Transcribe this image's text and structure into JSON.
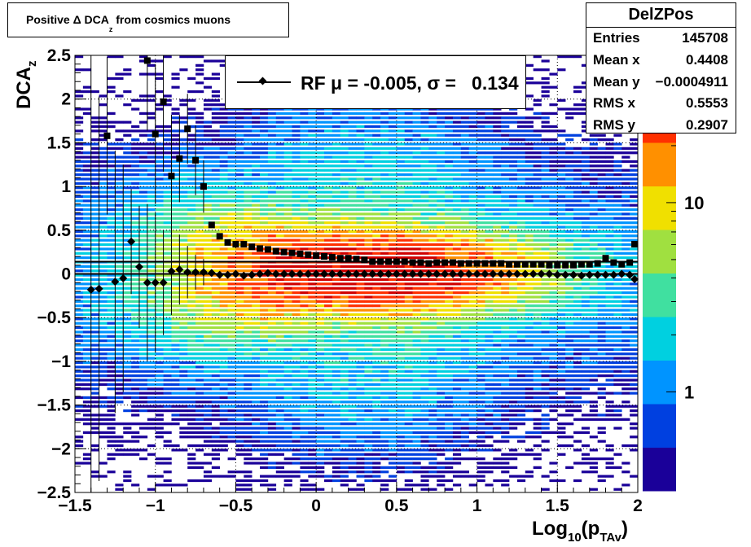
{
  "title": {
    "pre": "Positive Δ DCA",
    "sub": "z",
    "post": " from cosmics muons"
  },
  "stats": {
    "name": "DelZPos",
    "rows": [
      {
        "key": "Entries",
        "value": "145708"
      },
      {
        "key": "Mean x",
        "value": "0.4408"
      },
      {
        "key": "Mean y",
        "value": "−0.0004911"
      },
      {
        "key": "RMS x",
        "value": "0.5553"
      },
      {
        "key": "RMS y",
        "value": "0.2907"
      }
    ]
  },
  "legend": {
    "label": "RF μ = -0.005, σ =   0.134"
  },
  "axes": {
    "ylabel_main": "DCA",
    "ylabel_sub": "z",
    "xlabel_main": "Log",
    "xlabel_sub1": "10",
    "xlabel_mid": "(p",
    "xlabel_sub2": "TAv",
    "xlabel_end": ")"
  },
  "chart_data": {
    "type": "heatmap",
    "xlim": [
      -1.5,
      2
    ],
    "ylim": [
      -2.5,
      2.5
    ],
    "x_ticks": [
      -1.5,
      -1,
      -0.5,
      0,
      0.5,
      1,
      1.5,
      2
    ],
    "x_tick_labels": [
      "−1.5",
      "−1",
      "−0.5",
      "0",
      "0.5",
      "1",
      "1.5",
      "2"
    ],
    "y_ticks": [
      -2.5,
      -2,
      -1.5,
      -1,
      -0.5,
      0,
      0.5,
      1,
      1.5,
      2,
      2.5
    ],
    "y_tick_labels": [
      "−2.5",
      "−2",
      "−1.5",
      "−1",
      "−0.5",
      "0",
      "0.5",
      "1",
      "1.5",
      "2",
      "2.5"
    ],
    "grid": true,
    "log_z": true,
    "z_tick_labels": [
      "1",
      "10"
    ],
    "z_ticks": [
      1,
      10
    ],
    "z_range": [
      0.3,
      60
    ],
    "palette": [
      "#1a0099",
      "#0040e0",
      "#0094ff",
      "#00d0e0",
      "#40e0a0",
      "#a0e040",
      "#f0e000",
      "#ff9000",
      "#ff3000",
      "#d00000"
    ],
    "hlines": [
      0.14,
      0
    ],
    "markers_filled": [
      [
        -1.3,
        1.58
      ],
      [
        -1.05,
        2.44
      ],
      [
        -1.0,
        1.6
      ],
      [
        -0.95,
        1.97
      ],
      [
        -0.9,
        1.12
      ],
      [
        -0.85,
        1.32
      ],
      [
        -0.8,
        1.66
      ],
      [
        -0.75,
        1.3
      ],
      [
        -0.7,
        1.0
      ],
      [
        -0.65,
        0.56
      ],
      [
        -0.6,
        0.43
      ],
      [
        -0.55,
        0.36
      ],
      [
        -0.5,
        0.34
      ],
      [
        -0.45,
        0.34
      ],
      [
        -0.4,
        0.31
      ],
      [
        -0.35,
        0.29
      ],
      [
        -0.3,
        0.28
      ],
      [
        -0.25,
        0.26
      ],
      [
        -0.2,
        0.25
      ],
      [
        -0.15,
        0.24
      ],
      [
        -0.1,
        0.23
      ],
      [
        -0.05,
        0.22
      ],
      [
        0.0,
        0.21
      ],
      [
        0.05,
        0.2
      ],
      [
        0.1,
        0.19
      ],
      [
        0.15,
        0.18
      ],
      [
        0.2,
        0.18
      ],
      [
        0.25,
        0.17
      ],
      [
        0.3,
        0.16
      ],
      [
        0.35,
        0.14
      ],
      [
        0.4,
        0.14
      ],
      [
        0.45,
        0.14
      ],
      [
        0.5,
        0.14
      ],
      [
        0.55,
        0.14
      ],
      [
        0.6,
        0.13
      ],
      [
        0.65,
        0.13
      ],
      [
        0.7,
        0.12
      ],
      [
        0.75,
        0.13
      ],
      [
        0.8,
        0.13
      ],
      [
        0.85,
        0.13
      ],
      [
        0.9,
        0.12
      ],
      [
        0.95,
        0.12
      ],
      [
        1.0,
        0.12
      ],
      [
        1.05,
        0.12
      ],
      [
        1.1,
        0.12
      ],
      [
        1.15,
        0.12
      ],
      [
        1.2,
        0.11
      ],
      [
        1.25,
        0.11
      ],
      [
        1.3,
        0.11
      ],
      [
        1.35,
        0.11
      ],
      [
        1.4,
        0.11
      ],
      [
        1.45,
        0.1
      ],
      [
        1.5,
        0.1
      ],
      [
        1.55,
        0.1
      ],
      [
        1.6,
        0.1
      ],
      [
        1.65,
        0.11
      ],
      [
        1.7,
        0.11
      ],
      [
        1.75,
        0.12
      ],
      [
        1.8,
        0.18
      ],
      [
        1.85,
        0.13
      ],
      [
        1.9,
        0.11
      ],
      [
        1.95,
        0.13
      ],
      [
        1.98,
        0.34
      ]
    ],
    "markers_filled_err": [
      [
        -1.3,
        0.9
      ],
      [
        -1.05,
        0.8
      ],
      [
        -1.0,
        0.8
      ],
      [
        -0.95,
        0.8
      ],
      [
        -0.9,
        0.7
      ],
      [
        -0.85,
        0.5
      ],
      [
        -0.8,
        0.4
      ],
      [
        -0.75,
        0.4
      ],
      [
        -0.7,
        0.3
      ]
    ],
    "markers_diamond": [
      [
        -1.4,
        -0.18
      ],
      [
        -1.35,
        -0.17
      ],
      [
        -1.25,
        -0.09
      ],
      [
        -1.2,
        -0.05
      ],
      [
        -1.15,
        0.37
      ],
      [
        -1.1,
        0.08
      ],
      [
        -1.05,
        -0.1
      ],
      [
        -1.0,
        -0.1
      ],
      [
        -0.95,
        -0.1
      ],
      [
        -0.9,
        0.03
      ],
      [
        -0.85,
        0.05
      ],
      [
        -0.8,
        0.02
      ],
      [
        -0.75,
        0.02
      ],
      [
        -0.7,
        0.02
      ],
      [
        -0.65,
        0.01
      ],
      [
        -0.6,
        -0.01
      ],
      [
        -0.55,
        -0.01
      ],
      [
        -0.5,
        0.0
      ],
      [
        -0.45,
        -0.02
      ],
      [
        -0.4,
        -0.01
      ],
      [
        -0.35,
        0.0
      ],
      [
        -0.3,
        0.01
      ],
      [
        -0.25,
        0.0
      ],
      [
        -0.2,
        0.0
      ],
      [
        -0.15,
        0.0
      ],
      [
        -0.1,
        0.0
      ],
      [
        -0.05,
        0.0
      ],
      [
        0.0,
        0.0
      ],
      [
        0.05,
        0.0
      ],
      [
        0.1,
        0.0
      ],
      [
        0.15,
        0.0
      ],
      [
        0.2,
        0.0
      ],
      [
        0.25,
        0.0
      ],
      [
        0.3,
        0.0
      ],
      [
        0.35,
        0.0
      ],
      [
        0.4,
        0.0
      ],
      [
        0.45,
        0.0
      ],
      [
        0.5,
        0.0
      ],
      [
        0.55,
        0.0
      ],
      [
        0.6,
        0.0
      ],
      [
        0.65,
        0.0
      ],
      [
        0.7,
        0.0
      ],
      [
        0.75,
        0.0
      ],
      [
        0.8,
        0.0
      ],
      [
        0.85,
        0.0
      ],
      [
        0.9,
        0.0
      ],
      [
        0.95,
        0.0
      ],
      [
        1.0,
        0.0
      ],
      [
        1.05,
        0.0
      ],
      [
        1.1,
        0.0
      ],
      [
        1.15,
        0.0
      ],
      [
        1.2,
        0.0
      ],
      [
        1.25,
        0.0
      ],
      [
        1.3,
        0.0
      ],
      [
        1.35,
        0.0
      ],
      [
        1.4,
        0.0
      ],
      [
        1.45,
        0.0
      ],
      [
        1.5,
        -0.01
      ],
      [
        1.55,
        -0.01
      ],
      [
        1.6,
        -0.01
      ],
      [
        1.65,
        -0.02
      ],
      [
        1.7,
        -0.01
      ],
      [
        1.75,
        -0.01
      ],
      [
        1.8,
        -0.01
      ],
      [
        1.85,
        -0.01
      ],
      [
        1.9,
        0.0
      ],
      [
        1.95,
        -0.01
      ],
      [
        1.98,
        -0.06
      ]
    ],
    "markers_diamond_err": [
      [
        -1.4,
        2.9
      ],
      [
        -1.35,
        2.2
      ],
      [
        -1.25,
        1.5
      ],
      [
        -1.2,
        1.3
      ],
      [
        -1.15,
        0.6
      ],
      [
        -1.1,
        0.7
      ],
      [
        -1.05,
        0.9
      ],
      [
        -1.0,
        0.8
      ],
      [
        -0.95,
        0.6
      ],
      [
        -0.9,
        0.5
      ],
      [
        -0.85,
        0.4
      ],
      [
        -0.8,
        0.3
      ],
      [
        -0.75,
        0.2
      ],
      [
        -0.7,
        0.15
      ]
    ]
  }
}
